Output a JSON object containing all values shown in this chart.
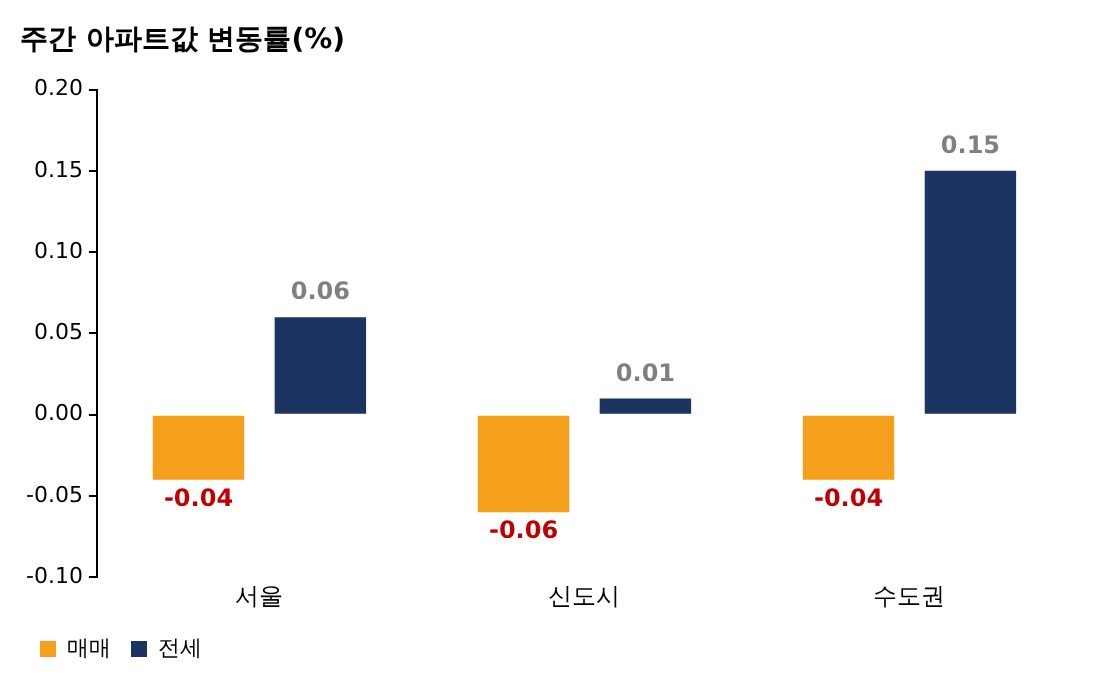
{
  "chart_data": {
    "type": "bar",
    "title": "주간 아파트값 변동률(%)",
    "categories": [
      "서울",
      "신도시",
      "수도권"
    ],
    "series": [
      {
        "name": "매매",
        "color": "#f5a01a",
        "values": [
          -0.04,
          -0.06,
          -0.04
        ]
      },
      {
        "name": "전세",
        "color": "#1c3461",
        "values": [
          0.06,
          0.01,
          0.15
        ]
      }
    ],
    "ylim": [
      -0.1,
      0.2
    ],
    "yticks": [
      {
        "value": -0.1,
        "label": "-0.10"
      },
      {
        "value": -0.05,
        "label": "-0.05"
      },
      {
        "value": 0,
        "label": "0.00"
      },
      {
        "value": 0.05,
        "label": "0.05"
      },
      {
        "value": 0.1,
        "label": "0.10"
      },
      {
        "value": 0.15,
        "label": "0.15"
      },
      {
        "value": 0.2,
        "label": "0.20"
      }
    ],
    "grid": false,
    "legend": "bottom left",
    "data_labels": true
  }
}
